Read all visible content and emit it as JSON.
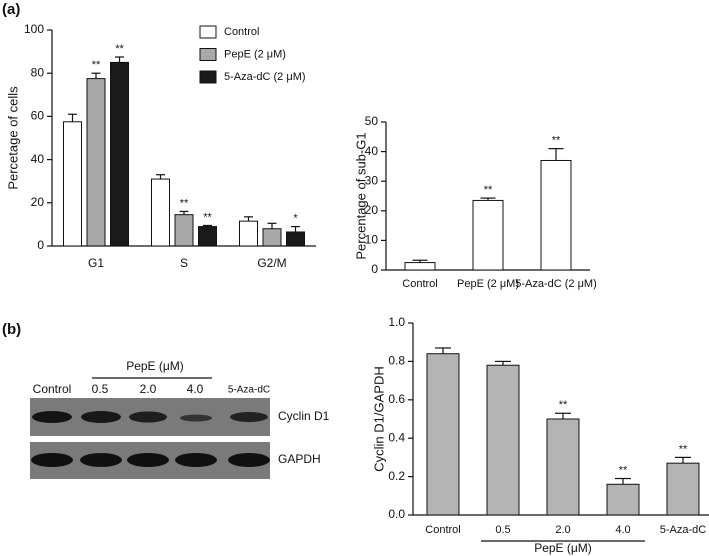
{
  "panels": {
    "a": "(a)",
    "b": "(b)"
  },
  "chart_data": [
    {
      "type": "bar",
      "ylabel": "Percetage of cells",
      "categories": [
        "G1",
        "S",
        "G2/M"
      ],
      "series": [
        {
          "name": "Control",
          "color": "#ffffff",
          "values": [
            57.5,
            31,
            11.5
          ],
          "errors": [
            3.5,
            2,
            2
          ],
          "significance": [
            null,
            null,
            null
          ]
        },
        {
          "name": "PepE (2 μM)",
          "color": "#a9a9a9",
          "values": [
            77.5,
            14.5,
            8
          ],
          "errors": [
            2.5,
            1.5,
            2.5
          ],
          "significance": [
            "**",
            "**",
            null
          ]
        },
        {
          "name": "5-Aza-dC (2 μM)",
          "color": "#1a1a1a",
          "values": [
            85,
            9,
            6.5
          ],
          "errors": [
            2.5,
            0.5,
            2.5
          ],
          "significance": [
            "**",
            "**",
            "*"
          ]
        }
      ],
      "ylim": [
        0,
        100
      ],
      "yticks": [
        0,
        20,
        40,
        60,
        80,
        100
      ],
      "legend": "upper right"
    },
    {
      "type": "bar",
      "ylabel": "Percentage of sub-G1",
      "categories": [
        "Control",
        "PepE (2 μM)",
        "5-Aza-dC (2 μM)"
      ],
      "values": [
        2.5,
        23.5,
        37
      ],
      "errors": [
        0.8,
        0.8,
        4
      ],
      "significance": [
        null,
        "**",
        "**"
      ],
      "color": "#ffffff",
      "ylim": [
        0,
        50
      ],
      "yticks": [
        0,
        10,
        20,
        30,
        40,
        50
      ]
    },
    {
      "type": "bar",
      "ylabel": "Cyclin D1/GAPDH",
      "categories": [
        "Control",
        "0.5",
        "2.0",
        "4.0",
        "5-Aza-dC"
      ],
      "values": [
        0.84,
        0.78,
        0.5,
        0.16,
        0.27
      ],
      "errors": [
        0.03,
        0.02,
        0.03,
        0.03,
        0.03
      ],
      "significance": [
        null,
        null,
        "**",
        "**",
        "**"
      ],
      "color": "#b4b4b4",
      "ylim": [
        0,
        1
      ],
      "yticks": [
        {
          "value": 0,
          "label": "0.0"
        },
        0.2,
        0.4,
        0.6,
        0.8,
        {
          "value": 1,
          "label": "1.0"
        }
      ],
      "group_label": "PepE (μM)"
    }
  ],
  "blot": {
    "group_label": "PepE (μM)",
    "lanes": [
      "Control",
      "0.5",
      "2.0",
      "4.0",
      "5-Aza-dC"
    ],
    "rows": [
      "Cyclin D1",
      "GAPDH"
    ]
  }
}
